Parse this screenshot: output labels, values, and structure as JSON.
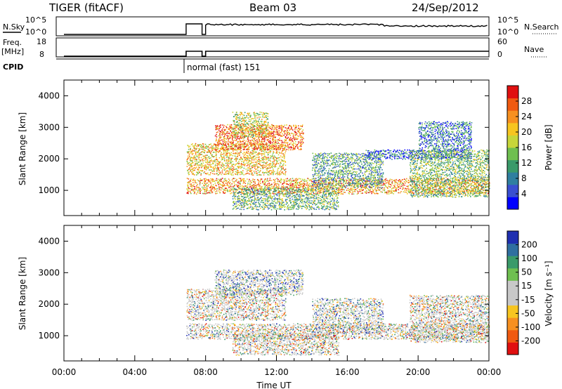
{
  "header": {
    "title": "TIGER (fitACF)",
    "beam": "Beam 03",
    "date": "24/Sep/2012"
  },
  "nsky_panel": {
    "left_label": "N.Sky",
    "left_ticks": [
      "10^5",
      "10^0"
    ],
    "right_ticks": [
      "10^5",
      "10^0"
    ],
    "right_label": "N.Search"
  },
  "freq_panel": {
    "left_label_line1": "Freq.",
    "left_label_line2": "[MHz]",
    "left_ticks": [
      "18",
      "8"
    ],
    "right_ticks": [
      "60",
      "0"
    ],
    "right_label": "Nave"
  },
  "cpid": {
    "label": "CPID",
    "mode": "normal (fast) 151"
  },
  "chart_data": [
    {
      "type": "heatmap",
      "name": "power",
      "ylabel": "Slant Range [km]",
      "yticks": [
        "4000",
        "3000",
        "2000",
        "1000"
      ],
      "ylim": [
        200,
        4500
      ],
      "xlim": [
        0,
        24
      ],
      "colorbar": {
        "label": "Power [dB]",
        "ticks": [
          "28",
          "24",
          "20",
          "16",
          "12",
          "8",
          "4"
        ],
        "colors": [
          "#0000ff",
          "#3a4fd0",
          "#2f7fa0",
          "#3a9a6a",
          "#6fbf50",
          "#c7d63a",
          "#f7c520",
          "#f79020",
          "#f05a10",
          "#e01010"
        ]
      },
      "bands": [
        {
          "t0": 6.9,
          "t1": 24,
          "r0": 900,
          "r1": 1400,
          "level": 0.72
        },
        {
          "t0": 6.9,
          "t1": 12.5,
          "r0": 1500,
          "r1": 2500,
          "level": 0.65
        },
        {
          "t0": 8.5,
          "t1": 13.5,
          "r0": 2300,
          "r1": 3100,
          "level": 0.82
        },
        {
          "t0": 9.5,
          "t1": 11.5,
          "r0": 2700,
          "r1": 3500,
          "level": 0.55
        },
        {
          "t0": 9.5,
          "t1": 15.5,
          "r0": 400,
          "r1": 1100,
          "level": 0.4
        },
        {
          "t0": 14,
          "t1": 18,
          "r0": 1100,
          "r1": 2200,
          "level": 0.35
        },
        {
          "t0": 17,
          "t1": 20,
          "r0": 2000,
          "r1": 2300,
          "level": 0.2
        },
        {
          "t0": 19.5,
          "t1": 24,
          "r0": 800,
          "r1": 2300,
          "level": 0.45
        },
        {
          "t0": 20,
          "t1": 23,
          "r0": 2000,
          "r1": 3200,
          "level": 0.25
        }
      ]
    },
    {
      "type": "heatmap",
      "name": "velocity",
      "ylabel": "Slant Range [km]",
      "yticks": [
        "4000",
        "3000",
        "2000",
        "1000"
      ],
      "ylim": [
        200,
        4500
      ],
      "xlim": [
        0,
        24
      ],
      "xlabel": "Time UT",
      "xticks": [
        "00:00",
        "04:00",
        "08:00",
        "12:00",
        "16:00",
        "20:00",
        "00:00"
      ],
      "colorbar": {
        "label": "Velocity [m s⁻¹]",
        "ticks": [
          "200",
          "100",
          "50",
          "15",
          "-15",
          "-50",
          "-100",
          "-200"
        ],
        "colors": [
          "#e01010",
          "#f05a10",
          "#f79020",
          "#f7c520",
          "#c8c8c8",
          "#c8c8c8",
          "#6fbf50",
          "#3a9a6a",
          "#2f6fa0",
          "#1f2fb0"
        ]
      },
      "bands": [
        {
          "t0": 6.9,
          "t1": 24,
          "r0": 900,
          "r1": 1400,
          "level": 0.5
        },
        {
          "t0": 6.9,
          "t1": 12.5,
          "r0": 1500,
          "r1": 2500,
          "level": 0.5
        },
        {
          "t0": 8.5,
          "t1": 13.5,
          "r0": 2300,
          "r1": 3100,
          "level": 0.7
        },
        {
          "t0": 9.5,
          "t1": 15.5,
          "r0": 400,
          "r1": 1100,
          "level": 0.5
        },
        {
          "t0": 14,
          "t1": 18,
          "r0": 1100,
          "r1": 2200,
          "level": 0.6
        },
        {
          "t0": 19.5,
          "t1": 24,
          "r0": 800,
          "r1": 2300,
          "level": 0.5
        }
      ]
    }
  ]
}
